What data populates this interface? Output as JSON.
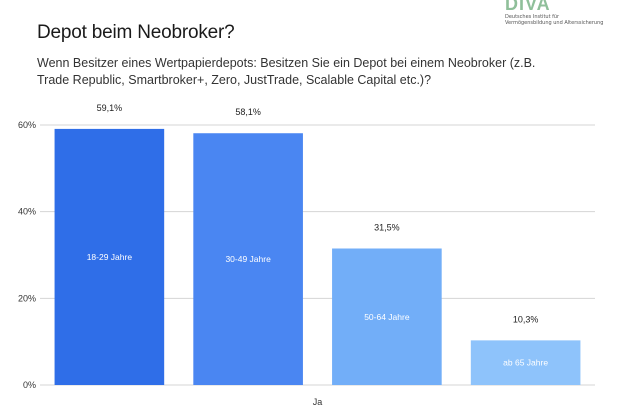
{
  "header": {
    "title": "Depot beim Neobroker?",
    "subtitle": "Wenn Besitzer eines Wertpapierdepots: Besitzen Sie ein Depot bei einem Neobroker (z.B. Trade Republic, Smartbroker+, Zero, JustTrade, Scalable Capital etc.)?"
  },
  "logo": {
    "word": "DIVA",
    "line1": "Deutsches Institut für",
    "line2": "Vermögensbildung und Alterssicherung"
  },
  "chart_data": {
    "type": "bar",
    "title": "Depot beim Neobroker?",
    "categories": [
      "Ja"
    ],
    "series": [
      {
        "name": "18-29 Jahre",
        "values": [
          59.1
        ],
        "value_label": "59,1%",
        "color": "#2f6ee8"
      },
      {
        "name": "30-49 Jahre",
        "values": [
          58.1
        ],
        "value_label": "58,1%",
        "color": "#4a86f2"
      },
      {
        "name": "50-64 Jahre",
        "values": [
          31.5
        ],
        "value_label": "31,5%",
        "color": "#72aef8"
      },
      {
        "name": "ab 65 Jahre",
        "values": [
          10.3
        ],
        "value_label": "10,3%",
        "color": "#8ec3fb"
      }
    ],
    "ylim": [
      0,
      60
    ],
    "yticks": [
      0,
      20,
      40,
      60
    ],
    "ytick_labels": [
      "0%",
      "20%",
      "40%",
      "60%"
    ],
    "xlabel": "",
    "ylabel": "",
    "grid": true,
    "legend": "none"
  }
}
